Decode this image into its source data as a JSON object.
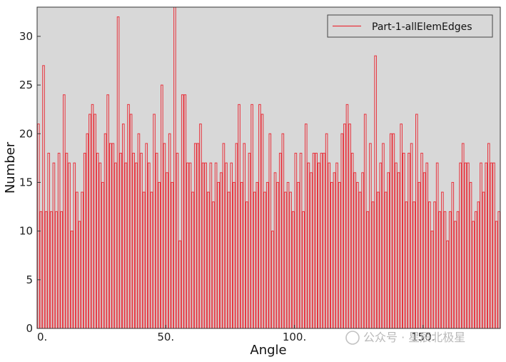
{
  "chart_data": {
    "type": "bar",
    "style": "step-histogram",
    "title": "",
    "xlabel": "Angle",
    "ylabel": "Number",
    "xlim": [
      0,
      180
    ],
    "ylim": [
      0,
      33
    ],
    "xticks": [
      0,
      50,
      100,
      150
    ],
    "xtick_labels": [
      "0.",
      "50.",
      "100.",
      "150."
    ],
    "yticks": [
      0,
      5,
      10,
      15,
      20,
      25,
      30
    ],
    "bin_width": 1,
    "background": "#d8d8d8",
    "grid": false,
    "legend_position": "top-right",
    "series": [
      {
        "name": "Part-1-allElemEdges",
        "color": "#e8323c",
        "x": [
          0,
          1,
          2,
          3,
          4,
          5,
          6,
          7,
          8,
          9,
          10,
          11,
          12,
          13,
          14,
          15,
          16,
          17,
          18,
          19,
          20,
          21,
          22,
          23,
          24,
          25,
          26,
          27,
          28,
          29,
          30,
          31,
          32,
          33,
          34,
          35,
          36,
          37,
          38,
          39,
          40,
          41,
          42,
          43,
          44,
          45,
          46,
          47,
          48,
          49,
          50,
          51,
          52,
          53,
          54,
          55,
          56,
          57,
          58,
          59,
          60,
          61,
          62,
          63,
          64,
          65,
          66,
          67,
          68,
          69,
          70,
          71,
          72,
          73,
          74,
          75,
          76,
          77,
          78,
          79,
          80,
          81,
          82,
          83,
          84,
          85,
          86,
          87,
          88,
          89,
          90,
          91,
          92,
          93,
          94,
          95,
          96,
          97,
          98,
          99,
          100,
          101,
          102,
          103,
          104,
          105,
          106,
          107,
          108,
          109,
          110,
          111,
          112,
          113,
          114,
          115,
          116,
          117,
          118,
          119,
          120,
          121,
          122,
          123,
          124,
          125,
          126,
          127,
          128,
          129,
          130,
          131,
          132,
          133,
          134,
          135,
          136,
          137,
          138,
          139,
          140,
          141,
          142,
          143,
          144,
          145,
          146,
          147,
          148,
          149,
          150,
          151,
          152,
          153,
          154,
          155,
          156,
          157,
          158,
          159,
          160,
          161,
          162,
          163,
          164,
          165,
          166,
          167,
          168,
          169,
          170,
          171,
          172,
          173,
          174,
          175,
          176,
          177,
          178,
          179
        ],
        "values": [
          21,
          12,
          27,
          12,
          18,
          12,
          17,
          12,
          18,
          12,
          24,
          18,
          17,
          10,
          17,
          14,
          11,
          14,
          18,
          20,
          22,
          23,
          22,
          18,
          17,
          15,
          20,
          24,
          19,
          19,
          17,
          32,
          18,
          21,
          17,
          23,
          22,
          18,
          17,
          20,
          18,
          14,
          19,
          17,
          14,
          22,
          18,
          15,
          25,
          19,
          16,
          20,
          15,
          33,
          18,
          9,
          24,
          24,
          17,
          17,
          14,
          19,
          19,
          21,
          17,
          17,
          14,
          17,
          13,
          17,
          15,
          16,
          19,
          17,
          14,
          17,
          15,
          19,
          23,
          15,
          19,
          13,
          18,
          23,
          14,
          15,
          23,
          22,
          14,
          15,
          20,
          10,
          16,
          15,
          18,
          20,
          14,
          15,
          14,
          12,
          18,
          15,
          18,
          12,
          21,
          17,
          16,
          18,
          18,
          17,
          18,
          18,
          20,
          17,
          15,
          16,
          17,
          15,
          20,
          21,
          23,
          21,
          18,
          16,
          15,
          14,
          16,
          22,
          12,
          19,
          13,
          28,
          14,
          17,
          19,
          14,
          16,
          20,
          20,
          17,
          16,
          21,
          18,
          13,
          18,
          19,
          13,
          22,
          15,
          18,
          16,
          17,
          13,
          10,
          13,
          17,
          12,
          14,
          12,
          9,
          12,
          15,
          11,
          12,
          17,
          19,
          17,
          17,
          15,
          11,
          12,
          13,
          17,
          14,
          17,
          19,
          17,
          17,
          11,
          12
        ]
      }
    ]
  },
  "watermark": {
    "text": "公众号 · 星辰北极星"
  }
}
